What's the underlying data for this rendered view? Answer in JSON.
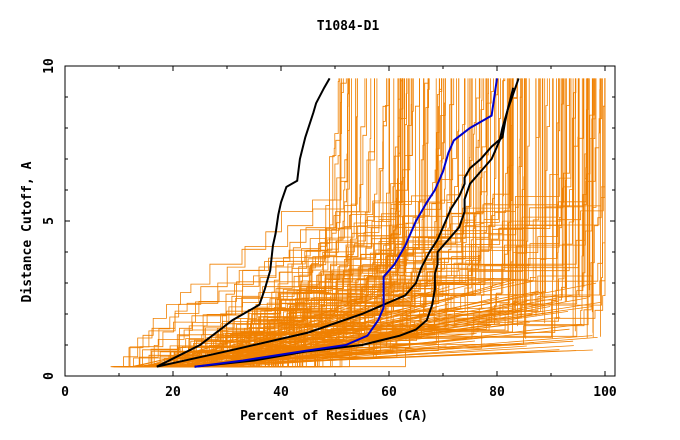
{
  "chart_data": {
    "type": "line",
    "title": "T1084-D1",
    "xlabel": "Percent of Residues (CA)",
    "ylabel": "Distance Cutoff, A",
    "xlim": [
      0,
      100
    ],
    "ylim": [
      0,
      10
    ],
    "xticks": [
      "0",
      "20",
      "40",
      "60",
      "80",
      "100"
    ],
    "yticks": [
      "0",
      "5",
      "10"
    ],
    "grid": false,
    "colors": {
      "background_series": "#f08000",
      "highlight_black": "#000000",
      "highlight_blue": "#0000cc",
      "axis": "#000000"
    },
    "highlight_series": [
      {
        "name": "black-left",
        "color": "#000000",
        "x": [
          17,
          25,
          31,
          36,
          37,
          38,
          38.5,
          39,
          39.5,
          40,
          41,
          43,
          43.5,
          44.5,
          46,
          46.5,
          48,
          49
        ],
        "y": [
          0.3,
          1.0,
          1.8,
          2.3,
          2.8,
          3.4,
          4.2,
          4.6,
          5.2,
          5.6,
          6.1,
          6.3,
          7.0,
          7.7,
          8.5,
          8.8,
          9.3,
          9.6
        ]
      },
      {
        "name": "black-upper-right",
        "color": "#000000",
        "x": [
          17,
          30,
          45,
          55,
          63,
          65,
          66,
          67.5,
          69,
          70,
          71.5,
          73,
          74,
          74,
          75,
          77,
          79,
          81,
          81.5,
          82,
          83,
          84
        ],
        "y": [
          0.3,
          0.8,
          1.4,
          2.0,
          2.6,
          3.0,
          3.5,
          4.0,
          4.4,
          4.8,
          5.4,
          5.8,
          6.2,
          6.4,
          6.7,
          7.0,
          7.4,
          7.7,
          8.2,
          8.6,
          9.1,
          9.6
        ]
      },
      {
        "name": "black-lower-right",
        "color": "#000000",
        "x": [
          24,
          35,
          45,
          55,
          62,
          65,
          67,
          68,
          68.5,
          68.5,
          69,
          69,
          71,
          73,
          74,
          74,
          75,
          77,
          79,
          80.5,
          81,
          82,
          83
        ],
        "y": [
          0.3,
          0.5,
          0.8,
          1.0,
          1.3,
          1.5,
          1.8,
          2.3,
          2.8,
          3.3,
          3.6,
          4.0,
          4.4,
          4.8,
          5.3,
          5.7,
          6.2,
          6.6,
          7.0,
          7.6,
          8.0,
          8.6,
          9.3
        ]
      },
      {
        "name": "blue",
        "color": "#0000cc",
        "x": [
          24,
          33,
          44,
          52,
          56,
          58,
          59,
          59,
          61,
          63,
          65,
          67,
          68.5,
          70,
          71,
          72,
          75,
          79,
          79.5,
          80
        ],
        "y": [
          0.3,
          0.5,
          0.8,
          1.0,
          1.3,
          1.8,
          2.2,
          3.2,
          3.6,
          4.2,
          5.0,
          5.6,
          6.0,
          6.6,
          7.2,
          7.6,
          8.0,
          8.4,
          9.0,
          9.6
        ]
      }
    ]
  }
}
